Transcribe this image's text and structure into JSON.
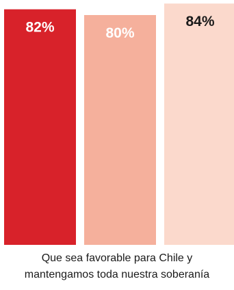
{
  "chart_data": {
    "type": "bar",
    "categories": [
      "",
      "",
      ""
    ],
    "values": [
      82,
      80,
      84
    ],
    "value_labels": [
      "82%",
      "80%",
      "84%"
    ],
    "colors": [
      "#d8222a",
      "#f5b09c",
      "#fbd9cc"
    ],
    "label_colors": [
      "#ffffff",
      "#ffffff",
      "#1a1a1a"
    ],
    "ylim": [
      0,
      100
    ],
    "grid": false,
    "legend": "none",
    "xlabel": "Que sea favorable para Chile y mantengamos toda nuestra soberanía",
    "ylabel": ""
  },
  "caption": {
    "line1": "Que sea favorable para Chile y",
    "line2": "mantengamos toda nuestra soberanía"
  }
}
